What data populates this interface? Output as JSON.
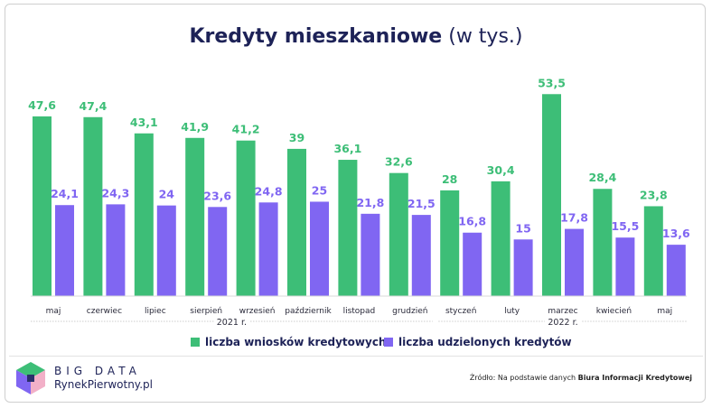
{
  "title_bold": "Kredyty mieszkaniowe",
  "title_light": "(w tys.)",
  "chart_data": {
    "type": "bar",
    "categories": [
      "maj",
      "czerwiec",
      "lipiec",
      "sierpień",
      "wrzesień",
      "październik",
      "listopad",
      "grudzień",
      "styczeń",
      "luty",
      "marzec",
      "kwiecień",
      "maj"
    ],
    "series": [
      {
        "name": "liczba wniosków kredytowych",
        "color": "#3dbe77",
        "values": [
          47.6,
          47.4,
          43.1,
          41.9,
          41.2,
          39,
          36.1,
          32.6,
          28,
          30.4,
          53.5,
          28.4,
          23.8
        ],
        "labels": [
          "47,6",
          "47,4",
          "43,1",
          "41,9",
          "41,2",
          "39",
          "36,1",
          "32,6",
          "28",
          "30,4",
          "53,5",
          "28,4",
          "23,8"
        ]
      },
      {
        "name": "liczba udzielonych kredytów",
        "color": "#8066f2",
        "values": [
          24.1,
          24.3,
          24,
          23.6,
          24.8,
          25,
          21.8,
          21.5,
          16.8,
          15,
          17.8,
          15.5,
          13.6
        ],
        "labels": [
          "24,1",
          "24,3",
          "24",
          "23,6",
          "24,8",
          "25",
          "21,8",
          "21,5",
          "16,8",
          "15",
          "17,8",
          "15,5",
          "13,6"
        ]
      }
    ],
    "year_groups": [
      {
        "label": "2021 r.",
        "span": [
          0,
          7
        ]
      },
      {
        "label": "2022 r.",
        "span": [
          8,
          12
        ]
      }
    ],
    "ylim": [
      0,
      55
    ],
    "grid": false,
    "legend_position": "bottom"
  },
  "brand": {
    "line1": "BIG DATA",
    "line2": "RynekPierwotny.pl",
    "logo_colors": [
      "#3dbe77",
      "#8066f2",
      "#f2b0c8",
      "#2b2f6b"
    ]
  },
  "source": {
    "prefix": "Źródło: Na podstawie danych ",
    "bold": "Biura Informacji Kredytowej"
  }
}
